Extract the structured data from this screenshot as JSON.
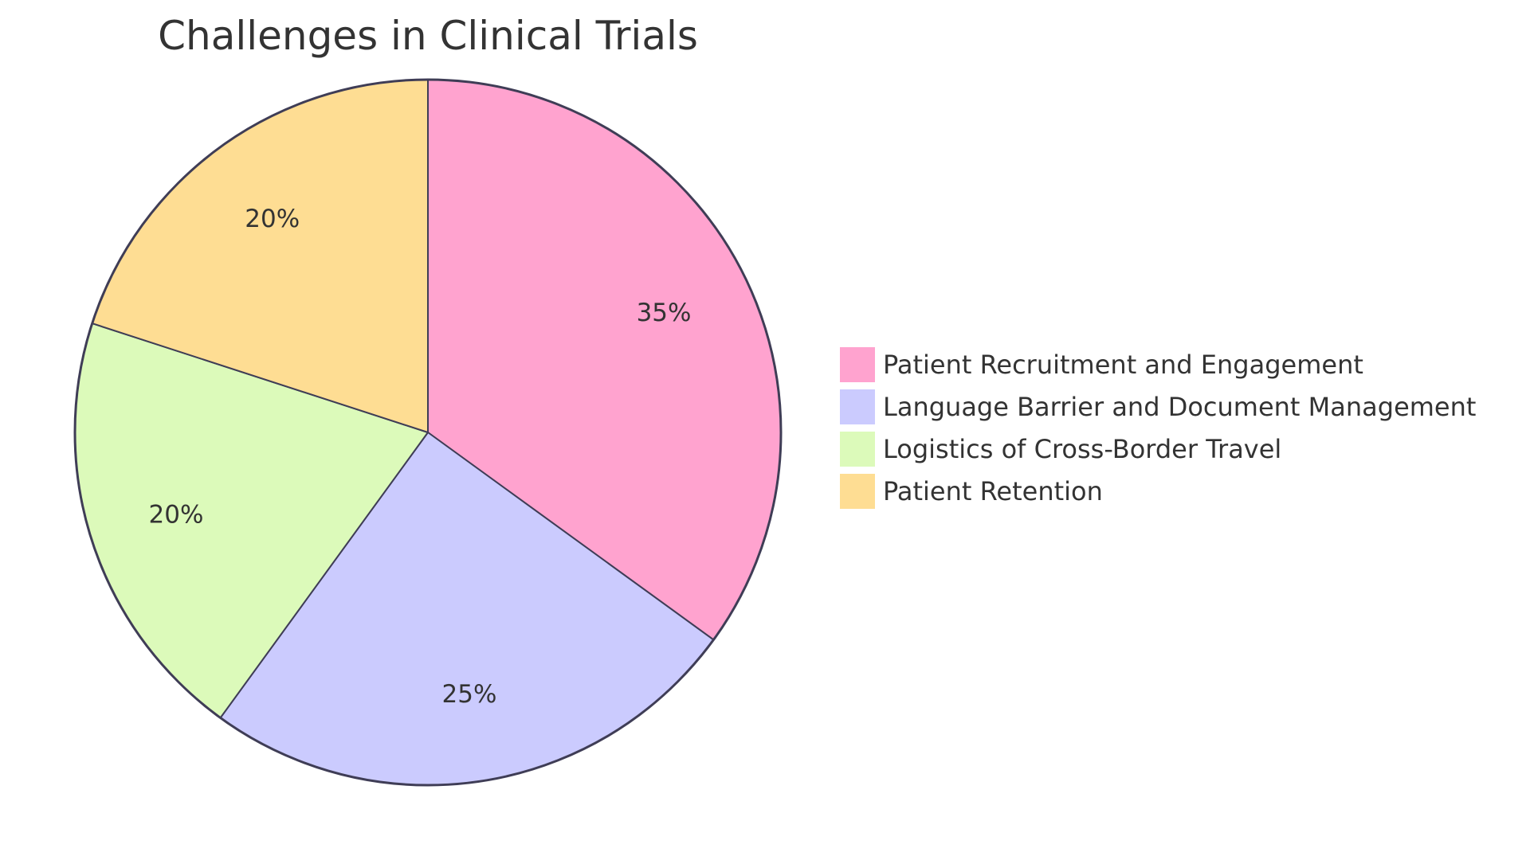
{
  "chart_data": {
    "type": "pie",
    "title": "Challenges in Clinical Trials",
    "slices": [
      {
        "label": "Patient Recruitment and Engagement",
        "value": 35,
        "display": "35%",
        "color": "#FFA3CF"
      },
      {
        "label": "Language Barrier and Document Management",
        "value": 25,
        "display": "25%",
        "color": "#CBCBFE"
      },
      {
        "label": "Logistics of Cross-Border Travel",
        "value": 20,
        "display": "20%",
        "color": "#DCFABA"
      },
      {
        "label": "Patient Retention",
        "value": 20,
        "display": "20%",
        "color": "#FEDD93"
      }
    ],
    "legend_position": "right",
    "stroke_color": "#3F3D56"
  }
}
